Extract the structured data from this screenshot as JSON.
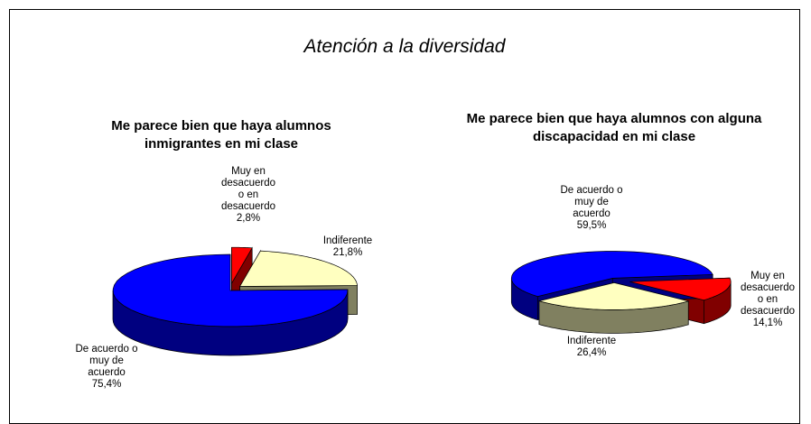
{
  "title": "Atención a la diversidad",
  "chart_data": [
    {
      "type": "pie3d",
      "title": "Me parece bien que haya alumnos inmigrantes en mi clase",
      "categories": [
        "Muy en desacuerdo o en desacuerdo",
        "Indiferente",
        "De acuerdo o muy de acuerdo"
      ],
      "values": [
        2.8,
        21.8,
        75.4
      ],
      "value_labels": [
        "2,8%",
        "21,8%",
        "75,4%"
      ],
      "colors": [
        "#ff0000",
        "#ffffc0",
        "#0000ff"
      ]
    },
    {
      "type": "pie3d",
      "title": "Me parece bien que haya alumnos con alguna discapacidad en mi clase",
      "categories": [
        "Muy en desacuerdo o en desacuerdo",
        "Indiferente",
        "De acuerdo o muy de acuerdo"
      ],
      "values": [
        14.1,
        26.4,
        59.5
      ],
      "value_labels": [
        "14,1%",
        "26,4%",
        "59,5%"
      ],
      "colors": [
        "#ff0000",
        "#ffffc0",
        "#0000ff"
      ]
    }
  ]
}
